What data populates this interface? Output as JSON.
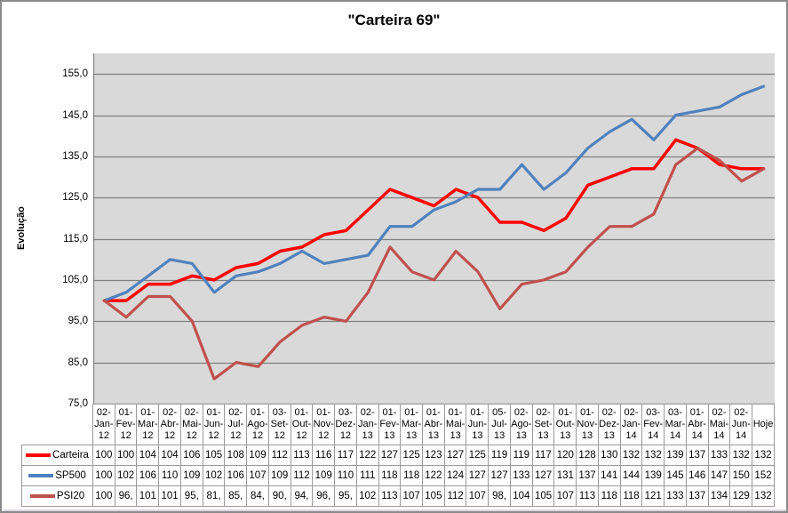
{
  "title": "\"Carteira 69\"",
  "y_axis": {
    "label": "Evolução",
    "tick_labels": [
      "155,0",
      "145,0",
      "135,0",
      "125,0",
      "115,0",
      "105,0",
      "95,0",
      "85,0",
      "75,0"
    ]
  },
  "colors": {
    "plot_background": "#d9d9d9",
    "gridline": "#7f7f7f",
    "axis": "#7f7f7f",
    "table_border": "#9a9a9a",
    "carteira": "#ff0000",
    "sp500": "#4f81bd",
    "psi20": "#c0504d"
  },
  "chart_data": {
    "type": "line",
    "title": "\"Carteira 69\"",
    "xlabel": "",
    "ylabel": "Evolução",
    "ylim": [
      75,
      160
    ],
    "y_major_unit": 10,
    "grid": true,
    "legend_position": "data-table-left",
    "categories": [
      "02-Jan-12",
      "01-Fev-12",
      "01-Mar-12",
      "02-Abr-12",
      "02-Mai-12",
      "01-Jun-12",
      "02-Jul-12",
      "01-Ago-12",
      "03-Set-12",
      "01-Out-12",
      "01-Nov-12",
      "03-Dez-12",
      "02-Jan-13",
      "01-Fev-13",
      "01-Mar-13",
      "01-Abr-13",
      "01-Mai-13",
      "01-Jun-13",
      "05-Jul-13",
      "02-Ago-13",
      "02-Set-13",
      "01-Out-13",
      "01-Nov-13",
      "02-Dez-13",
      "02-Jan-14",
      "03-Fev-14",
      "03-Mar-14",
      "01-Abr-14",
      "02-Mai-14",
      "02-Jun-14",
      "Hoje"
    ],
    "series": [
      {
        "name": "Carteira",
        "color": "#ff0000",
        "stroke_width": 3.5,
        "values": [
          100,
          100,
          104,
          104,
          106,
          105,
          108,
          109,
          112,
          113,
          116,
          117,
          122,
          127,
          125,
          123,
          127,
          125,
          119,
          119,
          117,
          120,
          128,
          130,
          132,
          132,
          139,
          137,
          133,
          132,
          132
        ],
        "display": [
          "100",
          "100",
          "104",
          "104",
          "106",
          "105",
          "108",
          "109",
          "112",
          "113",
          "116",
          "117",
          "122",
          "127",
          "125",
          "123",
          "127",
          "125",
          "119",
          "119",
          "117",
          "120",
          "128",
          "130",
          "132",
          "132",
          "139",
          "137",
          "133",
          "132",
          "132"
        ]
      },
      {
        "name": "SP500",
        "color": "#4f81bd",
        "stroke_width": 3.2,
        "values": [
          100,
          102,
          106,
          110,
          109,
          102,
          106,
          107,
          109,
          112,
          109,
          110,
          111,
          118,
          118,
          122,
          124,
          127,
          127,
          133,
          127,
          131,
          137,
          141,
          144,
          139,
          145,
          146,
          147,
          150,
          152
        ],
        "display": [
          "100",
          "102",
          "106",
          "110",
          "109",
          "102",
          "106",
          "107",
          "109",
          "112",
          "109",
          "110",
          "111",
          "118",
          "118",
          "122",
          "124",
          "127",
          "127",
          "133",
          "127",
          "131",
          "137",
          "141",
          "144",
          "139",
          "145",
          "146",
          "147",
          "150",
          "152"
        ]
      },
      {
        "name": "PSI20",
        "color": "#c0504d",
        "stroke_width": 3.2,
        "values": [
          100,
          96,
          101,
          101,
          95,
          81,
          85,
          84,
          90,
          94,
          96,
          95,
          102,
          113,
          107,
          105,
          112,
          107,
          98,
          104,
          105,
          107,
          113,
          118,
          118,
          121,
          133,
          137,
          134,
          129,
          132
        ],
        "display": [
          "100",
          "96,",
          "101",
          "101",
          "95,",
          "81,",
          "85,",
          "84,",
          "90,",
          "94,",
          "96,",
          "95,",
          "102",
          "113",
          "107",
          "105",
          "112",
          "107",
          "98,",
          "104",
          "105",
          "107",
          "113",
          "118",
          "118",
          "121",
          "133",
          "137",
          "134",
          "129",
          "132"
        ]
      }
    ]
  }
}
